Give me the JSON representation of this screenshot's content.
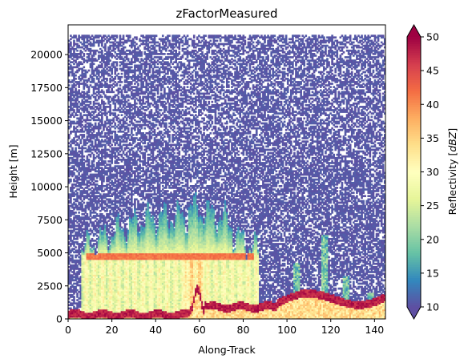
{
  "chart_data": {
    "type": "heatmap",
    "title": "zFactorMeasured",
    "xlabel": "Along-Track",
    "ylabel": "Height [m]",
    "xlim": [
      0,
      145
    ],
    "ylim": [
      0,
      22250
    ],
    "x_ticks": [
      0,
      20,
      40,
      60,
      80,
      100,
      120,
      140
    ],
    "y_ticks": [
      0,
      2500,
      5000,
      7500,
      10000,
      12500,
      15000,
      17500,
      20000
    ],
    "x_tick_labels": [
      "0",
      "20",
      "40",
      "60",
      "80",
      "100",
      "120",
      "140"
    ],
    "y_tick_labels": [
      "0",
      "2500",
      "5000",
      "7500",
      "10000",
      "12500",
      "15000",
      "17500",
      "20000"
    ],
    "colorbar": {
      "label": "Reflectivity [dBZ]",
      "label_main": "Reflectivity ",
      "label_unit": "dBZ",
      "range": [
        10,
        50
      ],
      "ticks": [
        10,
        15,
        20,
        25,
        30,
        35,
        40,
        45,
        50
      ],
      "tick_labels": [
        "10",
        "15",
        "20",
        "25",
        "30",
        "35",
        "40",
        "45",
        "50"
      ],
      "extend": "both",
      "colormap": "Spectral_r",
      "colors": [
        "#5e4fa2",
        "#3288bd",
        "#66c2a5",
        "#abdda4",
        "#e6f598",
        "#ffffbf",
        "#fee08b",
        "#fdae61",
        "#f46d43",
        "#d53e4f",
        "#9e0142"
      ]
    },
    "features": {
      "noise_floor_dbz": 10,
      "noise_top_height_m": 21500,
      "precipitation_extent_along_track": [
        6,
        87
      ],
      "bright_band_height_m": 4800,
      "bright_band_dbz": 40,
      "cloud_top_peak_height_m": 9000,
      "surface_clutter_dbz": 50,
      "surface_height_m": [
        0,
        2700
      ]
    }
  }
}
